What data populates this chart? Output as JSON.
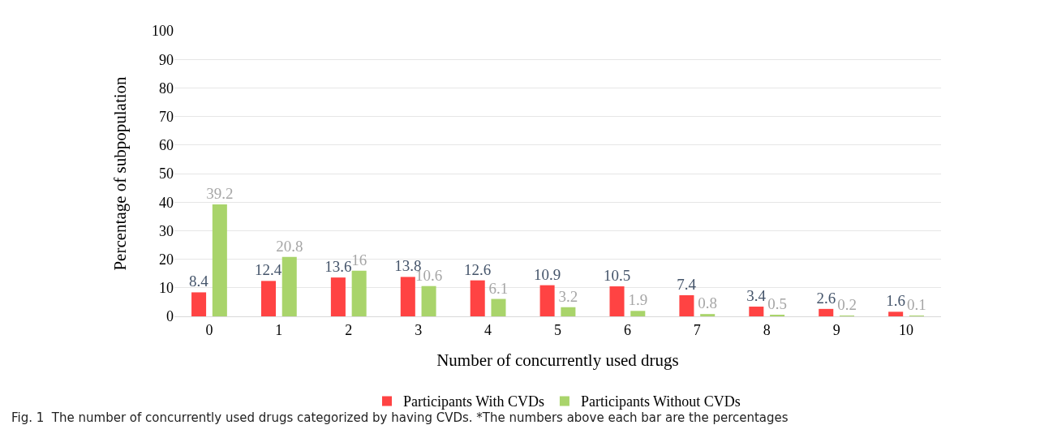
{
  "chart_data": {
    "type": "bar",
    "xlabel": "Number of concurrently used drugs",
    "ylabel": "Percentage of subpopulation",
    "categories": [
      "0",
      "1",
      "2",
      "3",
      "4",
      "5",
      "6",
      "7",
      "8",
      "9",
      "10"
    ],
    "series": [
      {
        "name": "Participants With CVDs",
        "color": "#ff4343",
        "values": [
          8.4,
          12.4,
          13.6,
          13.8,
          12.6,
          10.9,
          10.5,
          7.4,
          3.4,
          2.6,
          1.6
        ]
      },
      {
        "name": "Participants Without CVDs",
        "color": "#a9d46b",
        "values": [
          39.2,
          20.8,
          16,
          10.6,
          6.1,
          3.2,
          1.9,
          0.8,
          0.5,
          0.2,
          0.1
        ]
      }
    ],
    "ylim": [
      0,
      100
    ],
    "yticks": [
      0,
      10,
      20,
      30,
      40,
      50,
      60,
      70,
      80,
      90,
      100
    ],
    "grid": "y",
    "legend": "bottom",
    "data_labels": true,
    "annotations": [
      "Fig. 1  The number of concurrently used drugs categorized by having CVDs. *The numbers above each bar are the percentages"
    ]
  }
}
